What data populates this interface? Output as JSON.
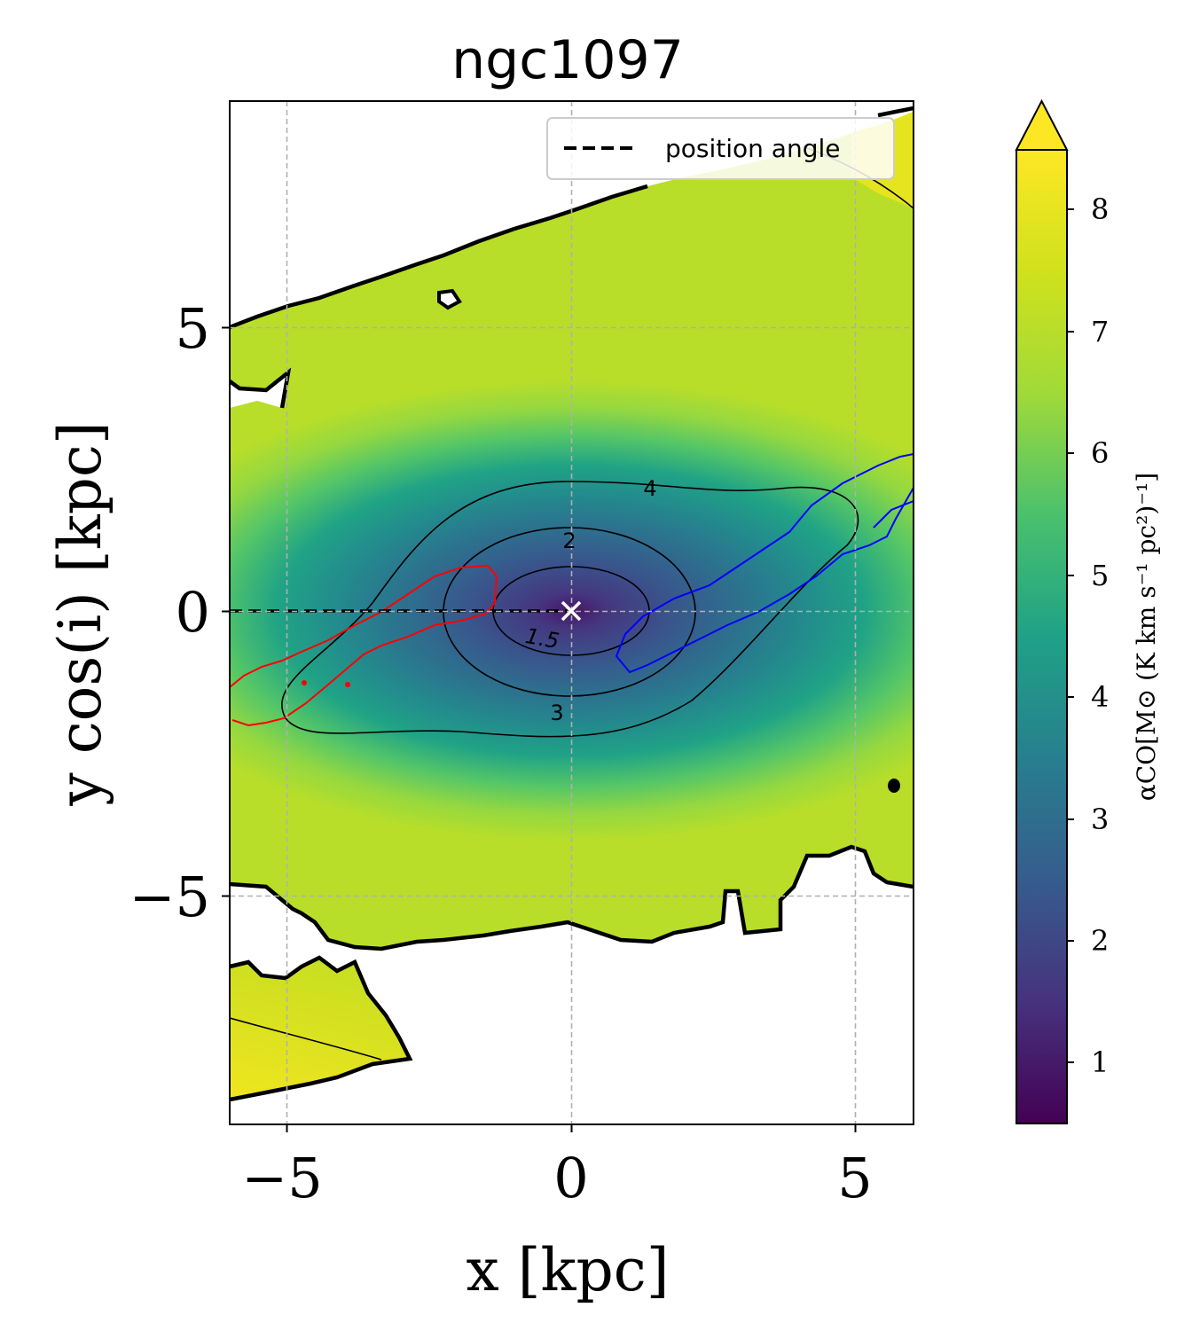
{
  "chart_data": {
    "type": "heatmap",
    "title": "ngc1097",
    "xlabel": "x [kpc]",
    "ylabel": "y cos(i) [kpc]",
    "xlim": [
      -6,
      6
    ],
    "ylim": [
      -8.7,
      9.2
    ],
    "x_ticks": [
      -5,
      0,
      5
    ],
    "x_tick_labels": [
      "−5",
      "0",
      "5"
    ],
    "y_ticks": [
      -5,
      0,
      5
    ],
    "y_tick_labels": [
      "−5",
      "0",
      "5"
    ],
    "grid": true,
    "colormap": "viridis",
    "colorbar": {
      "label": "αCO[M⊙ (K km s⁻¹ pc²)⁻¹]",
      "range": [
        0.5,
        8.5
      ],
      "extend": "max",
      "ticks": [
        1,
        2,
        3,
        4,
        5,
        6,
        7,
        8
      ],
      "tick_labels": [
        "1",
        "2",
        "3",
        "4",
        "5",
        "6",
        "7",
        "8"
      ]
    },
    "contour_labels": [
      {
        "text": "1.5",
        "x": -0.5,
        "y": -0.5
      },
      {
        "text": "2",
        "x": -0.05,
        "y": 1.25
      },
      {
        "text": "3",
        "x": -0.25,
        "y": -1.7
      },
      {
        "text": "4",
        "x": 1.4,
        "y": 2.1
      }
    ],
    "legend": {
      "position": "top-right",
      "entries": [
        {
          "label": "position angle",
          "style": "dashed",
          "color": "#000000"
        }
      ]
    },
    "center_marker": {
      "symbol": "x",
      "x": 0,
      "y": 0,
      "color": "#ffffff"
    },
    "position_angle_line": {
      "x": [
        -6,
        0
      ],
      "y": [
        0,
        0
      ]
    }
  }
}
